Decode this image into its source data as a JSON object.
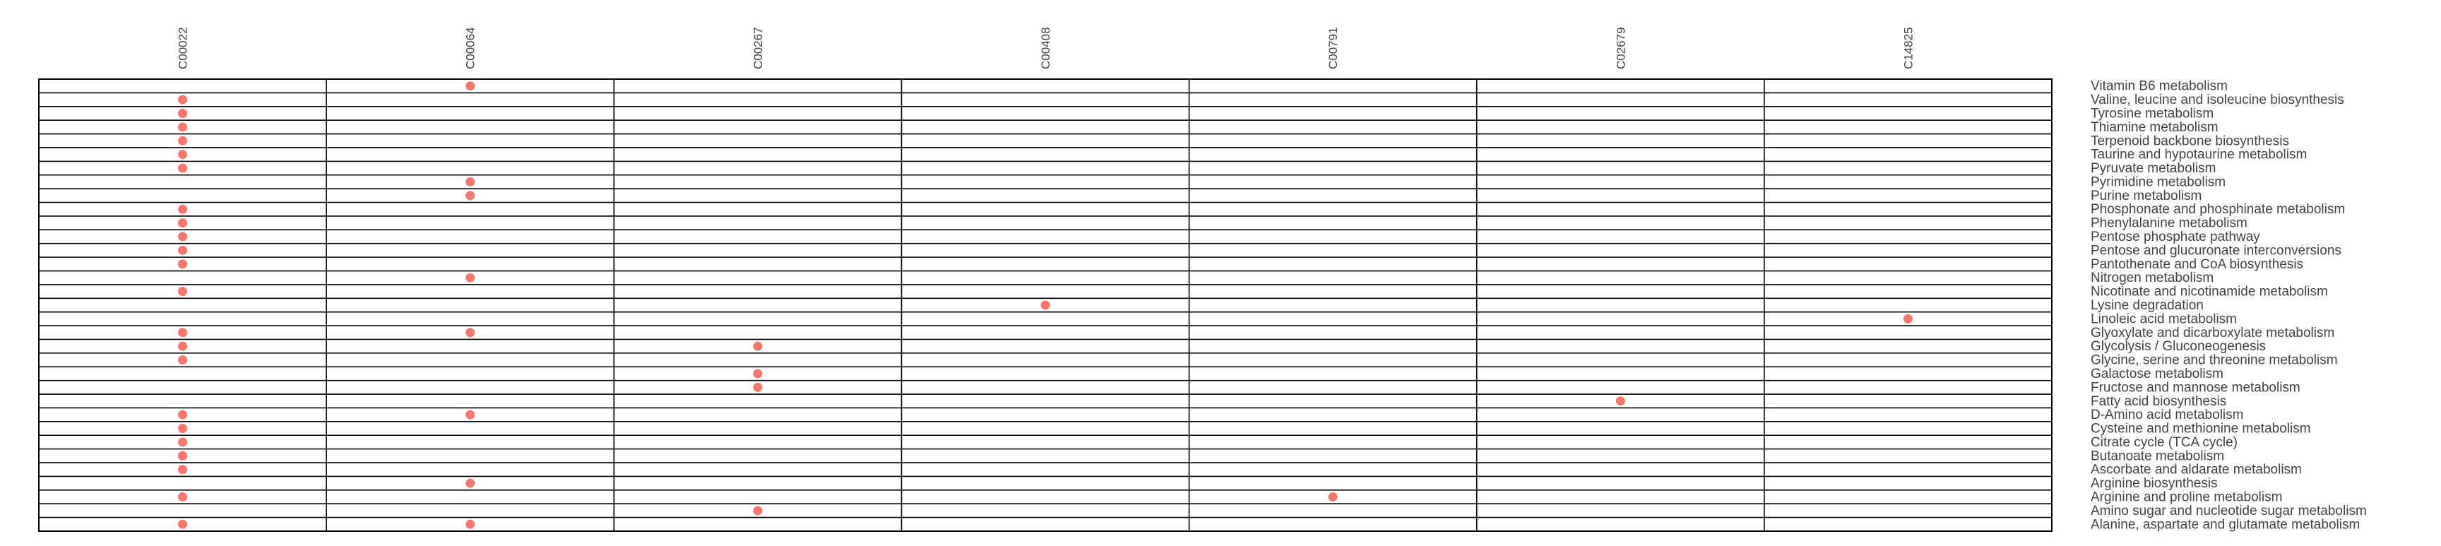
{
  "chart_data": {
    "type": "scatter",
    "title": "",
    "xlabel": "",
    "ylabel": "",
    "x_categories": [
      "C00022",
      "C00064",
      "C00267",
      "C00408",
      "C00791",
      "C02679",
      "C14825"
    ],
    "y_categories": [
      "Vitamin B6 metabolism",
      "Valine, leucine and isoleucine biosynthesis",
      "Tyrosine metabolism",
      "Thiamine metabolism",
      "Terpenoid backbone biosynthesis",
      "Taurine and hypotaurine metabolism",
      "Pyruvate metabolism",
      "Pyrimidine metabolism",
      "Purine metabolism",
      "Phosphonate and phosphinate metabolism",
      "Phenylalanine metabolism",
      "Pentose phosphate pathway",
      "Pentose and glucuronate interconversions",
      "Pantothenate and CoA biosynthesis",
      "Nitrogen metabolism",
      "Nicotinate and nicotinamide metabolism",
      "Lysine degradation",
      "Linoleic acid metabolism",
      "Glyoxylate and dicarboxylate metabolism",
      "Glycolysis / Gluconeogenesis",
      "Glycine, serine and threonine metabolism",
      "Galactose metabolism",
      "Fructose and mannose metabolism",
      "Fatty acid biosynthesis",
      "D-Amino acid metabolism",
      "Cysteine and methionine metabolism",
      "Citrate cycle (TCA cycle)",
      "Butanoate metabolism",
      "Ascorbate and aldarate metabolism",
      "Arginine biosynthesis",
      "Arginine and proline metabolism",
      "Amino sugar and nucleotide sugar metabolism",
      "Alanine, aspartate and glutamate metabolism"
    ],
    "points": [
      {
        "x": "C00064",
        "y": "Vitamin B6 metabolism"
      },
      {
        "x": "C00022",
        "y": "Valine, leucine and isoleucine biosynthesis"
      },
      {
        "x": "C00022",
        "y": "Tyrosine metabolism"
      },
      {
        "x": "C00022",
        "y": "Thiamine metabolism"
      },
      {
        "x": "C00022",
        "y": "Terpenoid backbone biosynthesis"
      },
      {
        "x": "C00022",
        "y": "Taurine and hypotaurine metabolism"
      },
      {
        "x": "C00022",
        "y": "Pyruvate metabolism"
      },
      {
        "x": "C00064",
        "y": "Pyrimidine metabolism"
      },
      {
        "x": "C00064",
        "y": "Purine metabolism"
      },
      {
        "x": "C00022",
        "y": "Phosphonate and phosphinate metabolism"
      },
      {
        "x": "C00022",
        "y": "Phenylalanine metabolism"
      },
      {
        "x": "C00022",
        "y": "Pentose phosphate pathway"
      },
      {
        "x": "C00022",
        "y": "Pentose and glucuronate interconversions"
      },
      {
        "x": "C00022",
        "y": "Pantothenate and CoA biosynthesis"
      },
      {
        "x": "C00064",
        "y": "Nitrogen metabolism"
      },
      {
        "x": "C00022",
        "y": "Nicotinate and nicotinamide metabolism"
      },
      {
        "x": "C00408",
        "y": "Lysine degradation"
      },
      {
        "x": "C14825",
        "y": "Linoleic acid metabolism"
      },
      {
        "x": "C00022",
        "y": "Glyoxylate and dicarboxylate metabolism"
      },
      {
        "x": "C00064",
        "y": "Glyoxylate and dicarboxylate metabolism"
      },
      {
        "x": "C00022",
        "y": "Glycolysis / Gluconeogenesis"
      },
      {
        "x": "C00267",
        "y": "Glycolysis / Gluconeogenesis"
      },
      {
        "x": "C00022",
        "y": "Glycine, serine and threonine metabolism"
      },
      {
        "x": "C00267",
        "y": "Galactose metabolism"
      },
      {
        "x": "C00267",
        "y": "Fructose and mannose metabolism"
      },
      {
        "x": "C02679",
        "y": "Fatty acid biosynthesis"
      },
      {
        "x": "C00022",
        "y": "D-Amino acid metabolism"
      },
      {
        "x": "C00064",
        "y": "D-Amino acid metabolism"
      },
      {
        "x": "C00022",
        "y": "Cysteine and methionine metabolism"
      },
      {
        "x": "C00022",
        "y": "Citrate cycle (TCA cycle)"
      },
      {
        "x": "C00022",
        "y": "Butanoate metabolism"
      },
      {
        "x": "C00022",
        "y": "Ascorbate and aldarate metabolism"
      },
      {
        "x": "C00064",
        "y": "Arginine biosynthesis"
      },
      {
        "x": "C00022",
        "y": "Arginine and proline metabolism"
      },
      {
        "x": "C00791",
        "y": "Arginine and proline metabolism"
      },
      {
        "x": "C00267",
        "y": "Amino sugar and nucleotide sugar metabolism"
      },
      {
        "x": "C00022",
        "y": "Alanine, aspartate and glutamate metabolism"
      },
      {
        "x": "C00064",
        "y": "Alanine, aspartate and glutamate metabolism"
      }
    ],
    "point_color": "#F8766D",
    "grid": true,
    "legend": "none"
  }
}
